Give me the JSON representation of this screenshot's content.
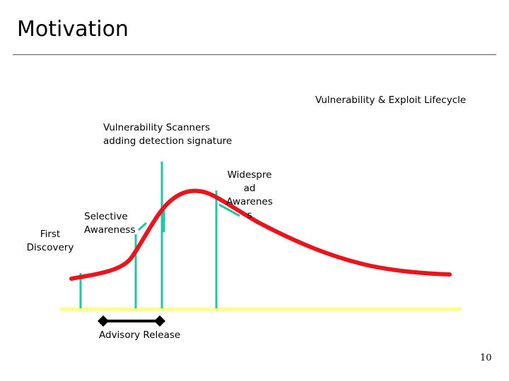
{
  "slide": {
    "title": "Motivation",
    "page_number": "10"
  },
  "diagram": {
    "title": "Vulnerability & Exploit Lifecycle",
    "labels": {
      "first_discovery": [
        "First",
        "Discovery"
      ],
      "selective_awareness": [
        "Selective",
        "Awareness"
      ],
      "scanners": [
        "Vulnerability Scanners",
        "adding detection signature"
      ],
      "widespread_awareness": [
        "Widespre",
        "ad",
        "Awarenes",
        "s"
      ],
      "advisory_release": "Advisory Release"
    },
    "colors": {
      "curve": "#e8161c",
      "markers": "#1fc7a2",
      "timeline": "#ffff80",
      "advisory_bar": "#000000"
    }
  }
}
